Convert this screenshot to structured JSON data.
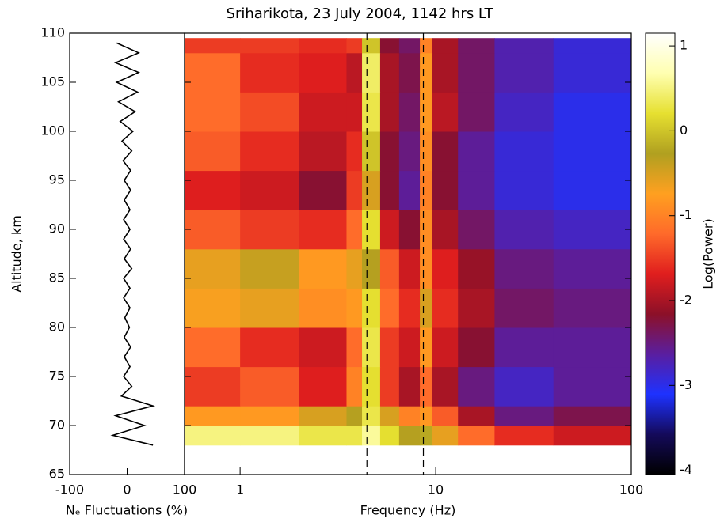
{
  "chart_data": [
    {
      "type": "profile",
      "xlabel": "Nₑ Fluctuations (%)",
      "ylabel": "Altitude, km",
      "color": "#000000",
      "xlim": [
        -100,
        100
      ],
      "xticks": [
        -100,
        0,
        100
      ],
      "ylim": [
        65,
        110
      ],
      "yticks": [
        65,
        70,
        75,
        80,
        85,
        90,
        95,
        100,
        105,
        110
      ],
      "altitude": [
        68,
        69,
        70,
        71,
        72,
        73,
        74,
        75,
        76,
        77,
        78,
        79,
        80,
        81,
        82,
        83,
        84,
        85,
        86,
        87,
        88,
        89,
        90,
        91,
        92,
        93,
        94,
        95,
        96,
        97,
        98,
        99,
        100,
        101,
        102,
        103,
        104,
        105,
        106,
        107,
        108,
        109
      ],
      "values": [
        45,
        -25,
        30,
        -20,
        45,
        -10,
        8,
        -6,
        5,
        -5,
        6,
        -5,
        4,
        -4,
        5,
        -6,
        5,
        -6,
        8,
        -5,
        6,
        -6,
        5,
        -6,
        5,
        -5,
        6,
        -5,
        6,
        -7,
        8,
        -9,
        10,
        -12,
        14,
        -15,
        18,
        -18,
        20,
        -20,
        20,
        -18
      ]
    },
    {
      "type": "heatmap",
      "title": "Sriharikota, 23 July 2004, 1142 hrs LT",
      "xlabel": "Frequency (Hz)",
      "log_x": true,
      "xlim": [
        0.52,
        100
      ],
      "xticks": [
        1,
        10,
        100
      ],
      "ylim": [
        65,
        110
      ],
      "yticks": [
        65,
        70,
        75,
        80,
        85,
        90,
        95,
        100,
        105,
        110
      ],
      "x_edges": [
        0.52,
        1,
        2,
        3.5,
        4.2,
        5.2,
        6.5,
        8.3,
        9.6,
        13,
        20,
        40,
        100
      ],
      "y_edges": [
        68,
        70,
        72,
        76,
        80,
        84,
        88,
        92,
        96,
        100,
        104,
        108,
        109.5
      ],
      "z": [
        [
          0.5,
          0.5,
          0.3,
          0.3,
          0.6,
          0.2,
          -0.3,
          -0.2,
          -0.6,
          -1.2,
          -1.6,
          -1.8
        ],
        [
          -0.8,
          -0.8,
          -0.5,
          -0.3,
          0.3,
          -0.5,
          -1,
          -0.8,
          -1.3,
          -2,
          -2.5,
          -2.3
        ],
        [
          -1.5,
          -1.3,
          -1.7,
          -1,
          0.2,
          -1.5,
          -2,
          -1.2,
          -2,
          -2.5,
          -2.8,
          -2.6
        ],
        [
          -1.2,
          -1.6,
          -1.8,
          -1.2,
          0.3,
          -1.5,
          -1.8,
          -0.8,
          -1.8,
          -2.2,
          -2.6,
          -2.6
        ],
        [
          -0.7,
          -0.6,
          -0.9,
          -0.8,
          0.2,
          -1.2,
          -1.6,
          -0.5,
          -1.6,
          -2,
          -2.4,
          -2.5
        ],
        [
          -0.6,
          -0.4,
          -0.8,
          -0.6,
          -0.3,
          -1.3,
          -1.8,
          -0.9,
          -1.7,
          -2.1,
          -2.5,
          -2.6
        ],
        [
          -1.3,
          -1.5,
          -1.6,
          -1.2,
          0.2,
          -1.8,
          -2.2,
          -0.9,
          -2,
          -2.4,
          -2.7,
          -2.8
        ],
        [
          -1.7,
          -1.8,
          -2.2,
          -1.5,
          -0.5,
          -2.2,
          -2.6,
          -1,
          -2.2,
          -2.6,
          -2.9,
          -3
        ],
        [
          -1.3,
          -1.6,
          -1.9,
          -1.6,
          0,
          -2.2,
          -2.5,
          -0.9,
          -2.2,
          -2.6,
          -2.9,
          -3
        ],
        [
          -1.2,
          -1.4,
          -1.8,
          -1.8,
          0.3,
          -2,
          -2.4,
          -0.8,
          -1.9,
          -2.4,
          -2.8,
          -3
        ],
        [
          -1.2,
          -1.6,
          -1.7,
          -1.9,
          0.4,
          -2,
          -2.3,
          -0.8,
          -2,
          -2.4,
          -2.7,
          -2.9
        ],
        [
          -1.5,
          -1.5,
          -1.6,
          -1.5,
          0,
          -2.2,
          -2.4,
          -1,
          -2,
          -2.4,
          -2.7,
          -2.9
        ]
      ],
      "reference_lines": [
        4.45,
        8.65
      ],
      "colorbar_label": "Log(Power)",
      "clim": [
        -4.05,
        1.15
      ],
      "cticks": [
        -4,
        -3,
        -2,
        -1,
        0,
        1
      ],
      "colormap": [
        "#000000",
        "#140a5a",
        "#1e32ff",
        "#5a1ea0",
        "#8c1028",
        "#e01e1e",
        "#ff6a2a",
        "#ffa020",
        "#b0a020",
        "#e6e030",
        "#ffffb0",
        "#ffffff"
      ]
    }
  ]
}
